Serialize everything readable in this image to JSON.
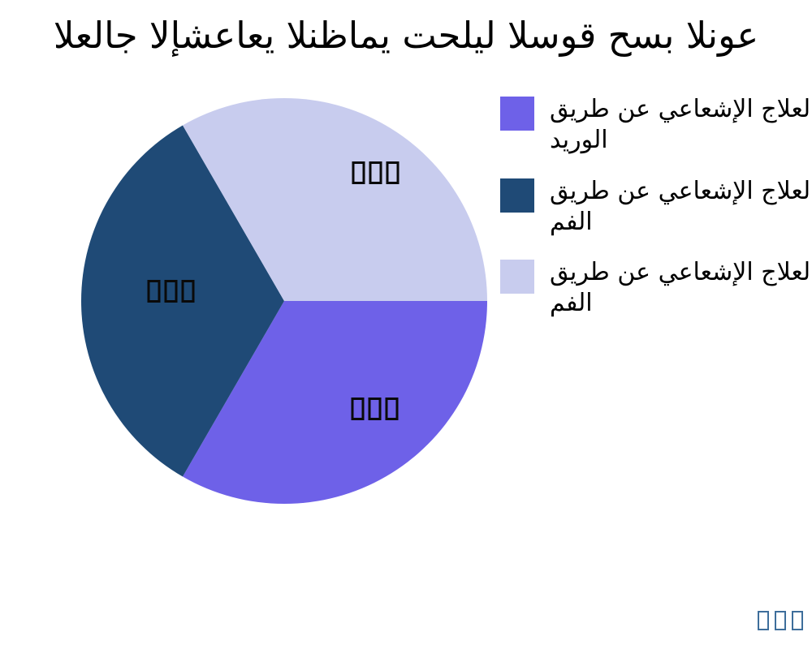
{
  "title": "العلاج الإشعاعي النظامي تحليل السوق حسب النوع",
  "chart_data": {
    "type": "pie",
    "title": "العلاج الإشعاعي النظامي تحليل السوق حسب النوع",
    "categories": [
      "العلاج الإشعاعي عن طريق الوريد",
      "العلاج الإشعاعي عن طريق الفم",
      "العلاج الإشعاعي عن طريق الفم"
    ],
    "values": [
      33.3,
      33.3,
      33.4
    ],
    "colors": [
      "#6e61e8",
      "#1f4a76",
      "#c8ccee"
    ],
    "slice_value_labels": [
      "□□□",
      "□□□",
      "□□□"
    ],
    "start_angle_deg": 0,
    "direction": "clockwise",
    "legend_position": "right",
    "background": "#ffffff"
  },
  "legend": {
    "items": [
      {
        "swatch_color": "#6e61e8",
        "line1": "العلاج الإشعاعي عن طريق",
        "line2": "الوريد"
      },
      {
        "swatch_color": "#1f4a76",
        "line1": "العلاج الإشعاعي عن طريق",
        "line2": "الفم"
      },
      {
        "swatch_color": "#c8ccee",
        "line1": "العلاج الإشعاعي عن طريق",
        "line2": "الفم"
      }
    ]
  },
  "watermark": {
    "text": "□□□",
    "color": "#3e6e9b"
  }
}
